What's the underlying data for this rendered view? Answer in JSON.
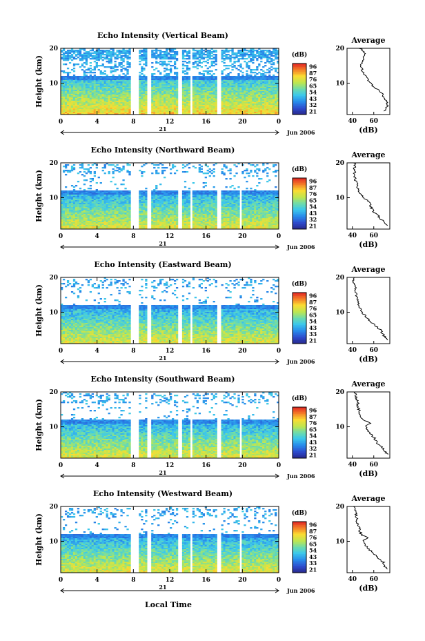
{
  "xlabel_bottom": "Local Time",
  "panels": [
    {
      "title": "Echo Intensity (Vertical Beam)",
      "avg_title": "Average"
    },
    {
      "title": "Echo Intensity (Northward Beam)",
      "avg_title": "Average"
    },
    {
      "title": "Echo Intensity (Eastward Beam)",
      "avg_title": "Average"
    },
    {
      "title": "Echo Intensity (Southward Beam)",
      "avg_title": "Average"
    },
    {
      "title": "Echo Intensity (Westward Beam)",
      "avg_title": "Average"
    }
  ],
  "chart_data": [
    {
      "type": "heatmap",
      "title": "Echo Intensity (Vertical Beam)",
      "ylabel": "Height (km)",
      "x_ticks": [
        "0",
        "4",
        "8",
        "12",
        "16",
        "20",
        "0"
      ],
      "xlim": [
        0,
        24
      ],
      "y_ticks": [
        "10",
        "20"
      ],
      "ylim": [
        1,
        20
      ],
      "date_label": "21",
      "month_label": "Jun 2006",
      "colorbar": {
        "unit": "(dB)",
        "ticks": [
          "96",
          "87",
          "76",
          "65",
          "54",
          "43",
          "32",
          "21"
        ],
        "range": [
          21,
          96
        ]
      },
      "gaps_hours": [
        [
          7.8,
          8.6
        ],
        [
          9.5,
          10.0
        ],
        [
          13.0,
          13.4
        ],
        [
          14.2,
          14.6
        ],
        [
          17.2,
          17.7
        ]
      ],
      "average_profile": {
        "title": "Average",
        "xlabel": "(dB)",
        "x_ticks": [
          "40",
          "60"
        ],
        "y_ticks": [
          "10",
          "20"
        ],
        "xlim": [
          35,
          75
        ],
        "heights": [
          2,
          3,
          4,
          5,
          6,
          7,
          8,
          9,
          10,
          11,
          12,
          13,
          14,
          15,
          16,
          17,
          18,
          19,
          20
        ],
        "values": [
          70,
          72,
          73,
          71,
          69,
          68,
          64,
          60,
          57,
          54,
          52,
          50,
          49,
          48,
          49,
          50,
          52,
          51,
          47
        ]
      }
    },
    {
      "type": "heatmap",
      "title": "Echo Intensity (Northward Beam)",
      "ylabel": "Height (km)",
      "x_ticks": [
        "0",
        "4",
        "8",
        "12",
        "16",
        "20",
        "0"
      ],
      "xlim": [
        0,
        24
      ],
      "y_ticks": [
        "10",
        "20"
      ],
      "ylim": [
        1,
        20
      ],
      "date_label": "21",
      "month_label": "Jun 2006",
      "colorbar": {
        "unit": "(dB)",
        "ticks": [
          "96",
          "87",
          "76",
          "65",
          "54",
          "43",
          "32",
          "21"
        ],
        "range": [
          21,
          96
        ]
      },
      "gaps_hours": [
        [
          7.8,
          8.6
        ],
        [
          9.5,
          10.0
        ],
        [
          13.0,
          13.4
        ],
        [
          14.2,
          14.6
        ],
        [
          17.2,
          17.7
        ],
        [
          19.7,
          20.0
        ]
      ],
      "average_profile": {
        "title": "Average",
        "xlabel": "(dB)",
        "x_ticks": [
          "40",
          "60"
        ],
        "y_ticks": [
          "10",
          "20"
        ],
        "xlim": [
          35,
          75
        ],
        "heights": [
          2,
          3,
          4,
          5,
          6,
          7,
          8,
          9,
          10,
          11,
          12,
          13,
          14,
          15,
          16,
          17,
          18,
          19,
          20
        ],
        "values": [
          72,
          70,
          66,
          64,
          60,
          58,
          57,
          55,
          50,
          48,
          46,
          45,
          44,
          43,
          42,
          42,
          42,
          42,
          42
        ]
      }
    },
    {
      "type": "heatmap",
      "title": "Echo Intensity (Eastward Beam)",
      "ylabel": "Height (km)",
      "x_ticks": [
        "0",
        "4",
        "8",
        "12",
        "16",
        "20",
        "0"
      ],
      "xlim": [
        0,
        24
      ],
      "y_ticks": [
        "10",
        "20"
      ],
      "ylim": [
        1,
        20
      ],
      "date_label": "21",
      "month_label": "Jun 2006",
      "colorbar": {
        "unit": "(dB)",
        "ticks": [
          "96",
          "87",
          "76",
          "65",
          "54",
          "43",
          "33",
          "21"
        ],
        "range": [
          21,
          96
        ]
      },
      "gaps_hours": [
        [
          7.8,
          8.6
        ],
        [
          9.5,
          10.0
        ],
        [
          13.0,
          13.4
        ],
        [
          14.2,
          14.6
        ],
        [
          17.2,
          17.7
        ]
      ],
      "average_profile": {
        "title": "Average",
        "xlabel": "(dB)",
        "x_ticks": [
          "40",
          "60"
        ],
        "y_ticks": [
          "10",
          "20"
        ],
        "xlim": [
          35,
          75
        ],
        "heights": [
          2,
          3,
          4,
          5,
          6,
          7,
          8,
          9,
          10,
          11,
          12,
          13,
          14,
          15,
          16,
          17,
          18,
          19,
          20
        ],
        "values": [
          73,
          70,
          68,
          66,
          62,
          58,
          55,
          52,
          49,
          47,
          46,
          45,
          44,
          44,
          43,
          43,
          42,
          41,
          41
        ]
      }
    },
    {
      "type": "heatmap",
      "title": "Echo Intensity (Southward Beam)",
      "ylabel": "Height (km)",
      "x_ticks": [
        "0",
        "4",
        "8",
        "12",
        "16",
        "20",
        "0"
      ],
      "xlim": [
        0,
        24
      ],
      "y_ticks": [
        "10",
        "20"
      ],
      "ylim": [
        1,
        20
      ],
      "date_label": "21",
      "month_label": "Jun 2006",
      "colorbar": {
        "unit": "(dB)",
        "ticks": [
          "96",
          "87",
          "76",
          "65",
          "54",
          "43",
          "32",
          "21"
        ],
        "range": [
          21,
          96
        ]
      },
      "gaps_hours": [
        [
          7.8,
          8.6
        ],
        [
          9.5,
          10.0
        ],
        [
          13.0,
          13.4
        ],
        [
          14.2,
          14.6
        ],
        [
          17.2,
          17.7
        ],
        [
          19.7,
          20.0
        ]
      ],
      "average_profile": {
        "title": "Average",
        "xlabel": "(dB)",
        "x_ticks": [
          "40",
          "60"
        ],
        "y_ticks": [
          "10",
          "20"
        ],
        "xlim": [
          35,
          75
        ],
        "heights": [
          2,
          3,
          4,
          5,
          6,
          7,
          8,
          9,
          10,
          11,
          12,
          13,
          14,
          15,
          16,
          17,
          18,
          19,
          20
        ],
        "values": [
          73,
          70,
          68,
          64,
          62,
          60,
          57,
          54,
          52,
          56,
          50,
          48,
          47,
          46,
          45,
          45,
          44,
          43,
          42
        ]
      }
    },
    {
      "type": "heatmap",
      "title": "Echo Intensity (Westward Beam)",
      "ylabel": "Height (km)",
      "x_ticks": [
        "0",
        "4",
        "8",
        "12",
        "16",
        "20",
        "0"
      ],
      "xlim": [
        0,
        24
      ],
      "y_ticks": [
        "10",
        "20"
      ],
      "ylim": [
        1,
        20
      ],
      "date_label": "21",
      "month_label": "Jun 2006",
      "colorbar": {
        "unit": "(dB)",
        "ticks": [
          "96",
          "87",
          "76",
          "65",
          "54",
          "43",
          "33",
          "21"
        ],
        "range": [
          21,
          96
        ]
      },
      "gaps_hours": [
        [
          7.8,
          8.6
        ],
        [
          9.5,
          10.0
        ],
        [
          13.0,
          13.4
        ],
        [
          14.2,
          14.6
        ],
        [
          17.2,
          17.7
        ],
        [
          19.7,
          20.0
        ]
      ],
      "average_profile": {
        "title": "Average",
        "xlabel": "(dB)",
        "x_ticks": [
          "40",
          "60"
        ],
        "y_ticks": [
          "10",
          "20"
        ],
        "xlim": [
          35,
          75
        ],
        "heights": [
          2,
          3,
          4,
          5,
          6,
          7,
          8,
          9,
          10,
          11,
          12,
          13,
          14,
          15,
          16,
          17,
          18,
          19,
          20
        ],
        "values": [
          72,
          70,
          69,
          65,
          62,
          58,
          55,
          52,
          50,
          54,
          48,
          47,
          46,
          45,
          44,
          44,
          43,
          43,
          42
        ]
      }
    }
  ]
}
